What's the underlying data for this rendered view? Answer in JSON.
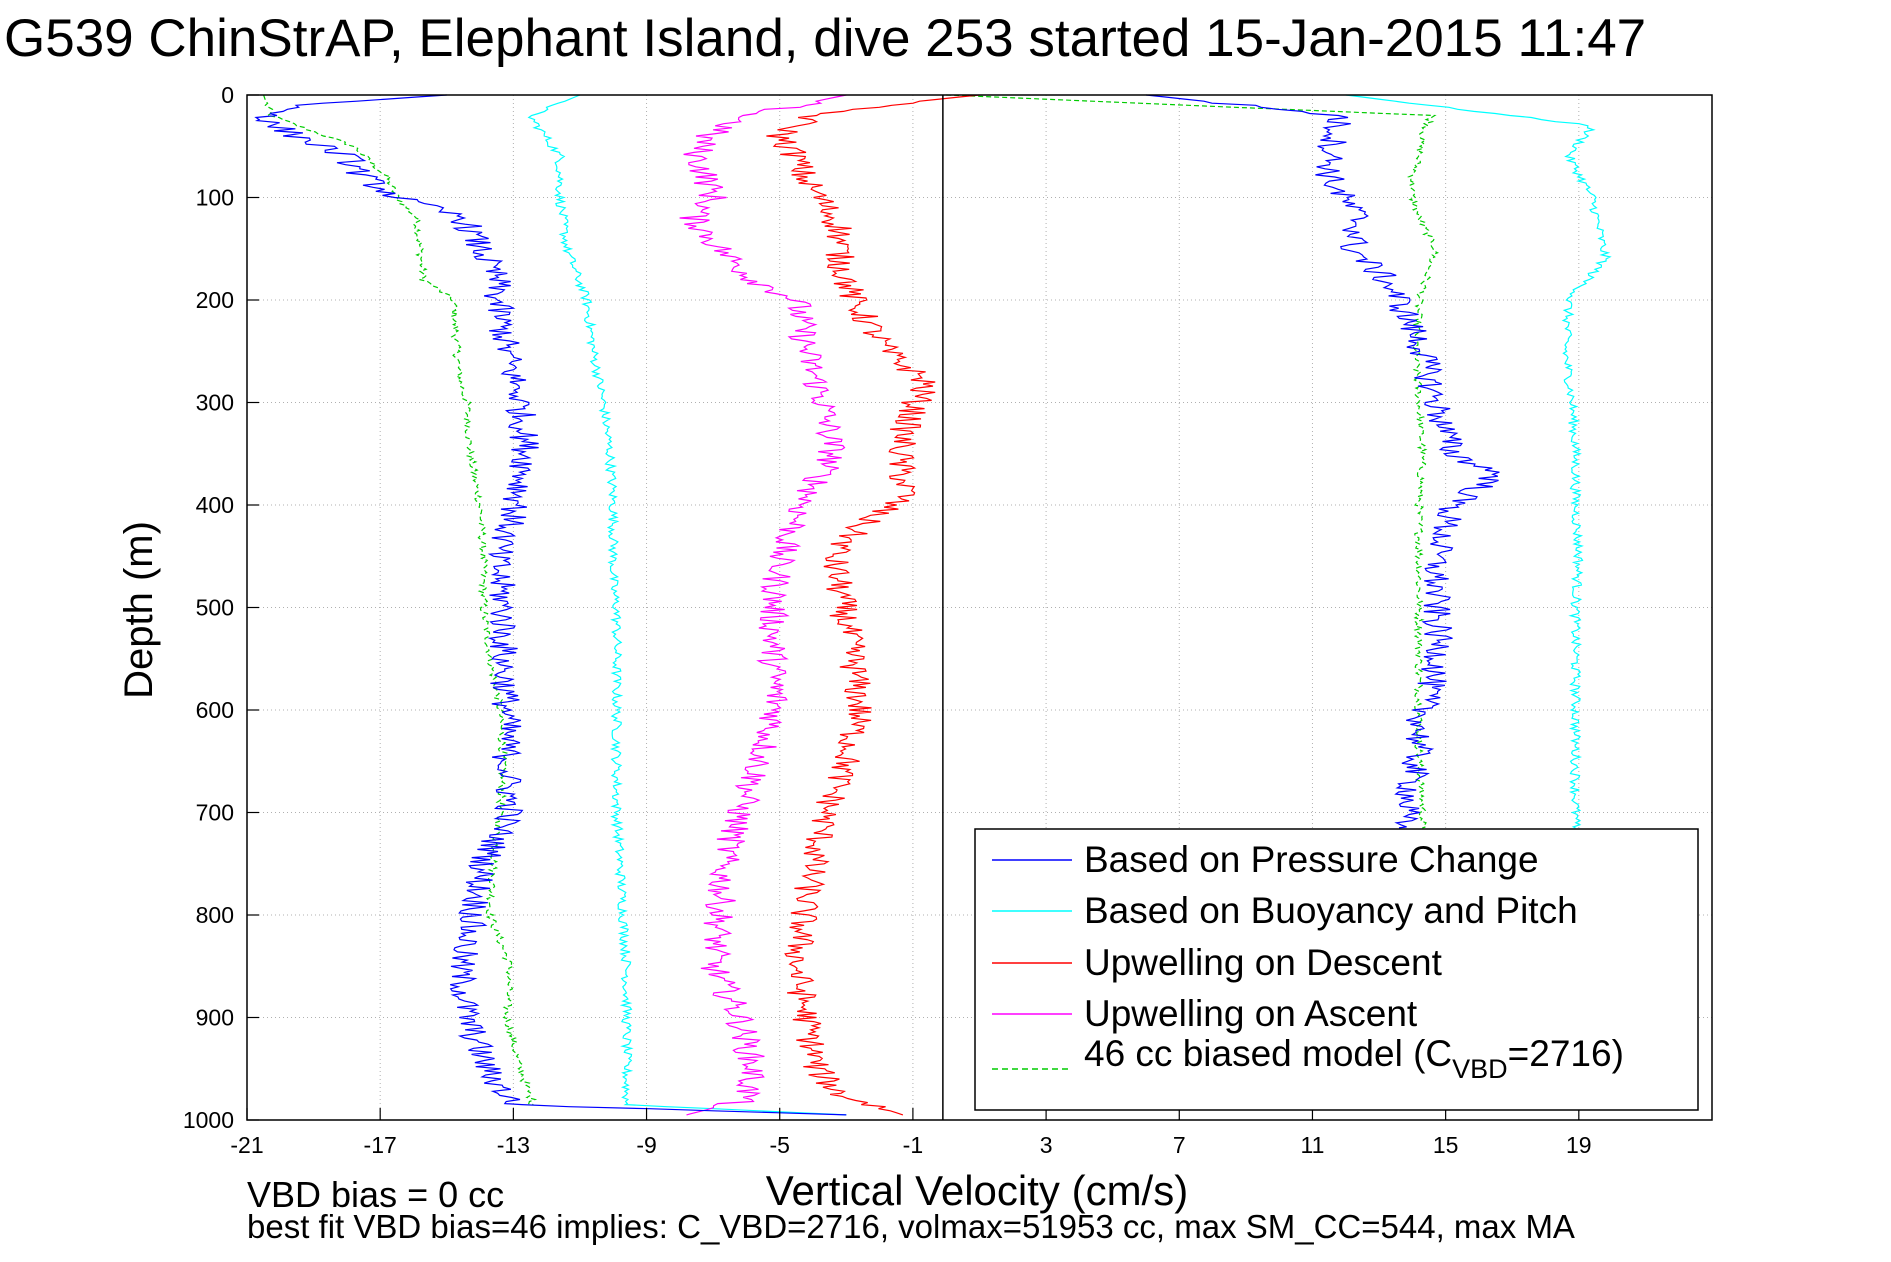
{
  "chart_data": {
    "type": "line",
    "title": "G539 ChinStrAP, Elephant Island, dive 253 started 15-Jan-2015 11:47",
    "xlabel": "Vertical Velocity (cm/s)",
    "ylabel": "Depth (m)",
    "xlim": [
      -21,
      23
    ],
    "ylim": [
      0,
      1000
    ],
    "y_reversed": true,
    "grid": true,
    "x_ticks": [
      -21,
      -17,
      -13,
      -9,
      -5,
      -1,
      3,
      7,
      11,
      15,
      19
    ],
    "y_ticks": [
      0,
      100,
      200,
      300,
      400,
      500,
      600,
      700,
      800,
      900,
      1000
    ],
    "vertical_line_x": -0.1,
    "legend_position": "bottom-right",
    "series": [
      {
        "name": "Based on Pressure Change",
        "color": "#0000ff",
        "style": "solid",
        "segments": [
          {
            "depth": [
              0,
              10,
              25,
              40,
              60,
              80,
              100,
              120,
              150,
              180,
              200,
              250,
              300,
              350,
              400,
              450,
              500,
              550,
              600,
              650,
              700,
              750,
              800,
              850,
              900,
              950,
              985,
              995
            ],
            "velocity": [
              -15,
              -19.5,
              -20.5,
              -19.5,
              -18,
              -17.5,
              -16.5,
              -14.5,
              -14,
              -13.5,
              -13.5,
              -13.2,
              -12.8,
              -12.6,
              -12.9,
              -13.5,
              -13.3,
              -13.3,
              -13.2,
              -13.2,
              -13.1,
              -13.9,
              -14.2,
              -14.6,
              -14.4,
              -13.8,
              -13,
              -3
            ]
          },
          {
            "depth": [
              0,
              20,
              50,
              80,
              100,
              120,
              150,
              180,
              200,
              250,
              300,
              350,
              370,
              400,
              450,
              500,
              550,
              600,
              650,
              700,
              715
            ],
            "velocity": [
              6,
              11.8,
              11.6,
              11.5,
              11.9,
              12.4,
              12.2,
              13.2,
              13.6,
              14.3,
              14.7,
              15.2,
              16.6,
              15.2,
              14.7,
              14.7,
              14.8,
              14.3,
              14.1,
              13.8,
              13.6
            ]
          }
        ]
      },
      {
        "name": "Based on Buoyancy and Pitch",
        "color": "#00ffff",
        "style": "solid",
        "segments": [
          {
            "depth": [
              0,
              20,
              60,
              100,
              150,
              200,
              250,
              300,
              350,
              400,
              440,
              480,
              500,
              550,
              600,
              650,
              700,
              750,
              800,
              850,
              900,
              950,
              985,
              995
            ],
            "velocity": [
              -11,
              -12.5,
              -11.6,
              -11.6,
              -11.4,
              -10.8,
              -10.6,
              -10.3,
              -10.1,
              -10.0,
              -10.0,
              -10.0,
              -9.9,
              -9.9,
              -9.9,
              -9.9,
              -9.9,
              -9.8,
              -9.7,
              -9.6,
              -9.6,
              -9.6,
              -9.6,
              -3
            ]
          },
          {
            "depth": [
              0,
              30,
              60,
              100,
              160,
              200,
              250,
              300,
              350,
              400,
              450,
              500,
              555,
              600,
              650,
              700,
              715
            ],
            "velocity": [
              12,
              19.4,
              18.7,
              19.4,
              19.8,
              18.7,
              18.6,
              18.8,
              18.9,
              18.9,
              19.0,
              18.9,
              18.9,
              18.9,
              18.9,
              18.9,
              18.9
            ]
          }
        ]
      },
      {
        "name": "Upwelling on Descent",
        "color": "#ff0000",
        "style": "solid",
        "segments": [
          {
            "depth": [
              0,
              10,
              20,
              40,
              60,
              80,
              100,
              130,
              160,
              200,
              250,
              280,
              300,
              330,
              360,
              390,
              420,
              450,
              500,
              550,
              600,
              650,
              700,
              750,
              800,
              850,
              900,
              950,
              975,
              995
            ],
            "velocity": [
              1,
              -2,
              -4,
              -5,
              -4.5,
              -4.3,
              -3.8,
              -3.2,
              -3.2,
              -2.8,
              -1.8,
              -0.6,
              -0.9,
              -1.3,
              -1.4,
              -1.2,
              -2.6,
              -3.4,
              -3.1,
              -2.8,
              -2.6,
              -3.0,
              -3.6,
              -4.0,
              -4.3,
              -4.5,
              -4.2,
              -3.9,
              -3.2,
              -1.3
            ]
          }
        ]
      },
      {
        "name": "Upwelling on Ascent",
        "color": "#ff00ff",
        "style": "solid",
        "segments": [
          {
            "depth": [
              0,
              20,
              40,
              60,
              80,
              100,
              120,
              150,
              180,
              200,
              250,
              300,
              350,
              400,
              450,
              500,
              550,
              600,
              650,
              700,
              750,
              800,
              850,
              900,
              950,
              980,
              995
            ],
            "velocity": [
              -3,
              -6,
              -7.2,
              -7.5,
              -7.2,
              -7.0,
              -7.6,
              -6.8,
              -5.8,
              -4.5,
              -4.2,
              -3.7,
              -3.4,
              -4.3,
              -5.0,
              -5.2,
              -5.2,
              -5.1,
              -5.6,
              -6.2,
              -6.7,
              -6.8,
              -7.0,
              -6.2,
              -5.8,
              -6.0,
              -7.8
            ]
          }
        ]
      },
      {
        "name": "46 cc biased model (C_VBD=2716)",
        "color": "#00cc00",
        "style": "dashed",
        "segments": [
          {
            "depth": [
              0,
              20,
              50,
              80,
              100,
              120,
              150,
              180,
              200,
              250,
              280,
              300,
              350,
              400,
              450,
              500,
              550,
              600,
              650,
              700,
              750,
              800,
              850,
              900,
              950,
              985
            ],
            "velocity": [
              -20.5,
              -20.3,
              -17.8,
              -16.8,
              -16.5,
              -15.9,
              -15.8,
              -15.7,
              -14.8,
              -14.7,
              -14.6,
              -14.4,
              -14.3,
              -14.0,
              -13.9,
              -13.9,
              -13.7,
              -13.4,
              -13.3,
              -13.4,
              -13.6,
              -13.7,
              -13.1,
              -13.2,
              -12.8,
              -12.4
            ]
          },
          {
            "depth": [
              0,
              20,
              40,
              60,
              80,
              100,
              120,
              150,
              200,
              250,
              300,
              350,
              400,
              450,
              500,
              550,
              600,
              650,
              700,
              715
            ],
            "velocity": [
              0,
              14.6,
              14.3,
              14.2,
              14.0,
              14.0,
              14.2,
              14.7,
              14.2,
              14.1,
              14.2,
              14.3,
              14.2,
              14.2,
              14.2,
              14.2,
              14.2,
              14.2,
              14.3,
              14.3
            ]
          }
        ]
      }
    ],
    "legend_labels": [
      "Based on Pressure Change",
      "Based on Buoyancy and Pitch",
      "Upwelling on Descent",
      "Upwelling on Ascent",
      "46 cc biased model (C"
    ],
    "legend_subscript": "VBD",
    "legend_suffix": "=2716)",
    "notes": [
      "VBD bias = 0 cc",
      "best fit VBD bias=46 implies: C_VBD=2716, volmax=51953 cc, max SM_CC=544, max MA"
    ]
  }
}
